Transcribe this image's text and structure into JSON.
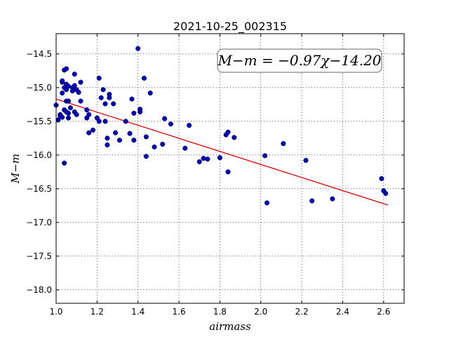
{
  "chart_data": {
    "type": "scatter",
    "title": "2021-10-25_002315",
    "xlabel": "airmass",
    "ylabel": "M−m",
    "xlim": [
      1.0,
      2.7
    ],
    "ylim": [
      -18.2,
      -14.2
    ],
    "y_inverted": false,
    "grid": true,
    "x_ticks": [
      1.0,
      1.2,
      1.4,
      1.6,
      1.8,
      2.0,
      2.2,
      2.4,
      2.6
    ],
    "x_tick_labels": [
      "1.0",
      "1.2",
      "1.4",
      "1.6",
      "1.8",
      "2.0",
      "2.2",
      "2.4",
      "2.6"
    ],
    "y_ticks": [
      -14.5,
      -15.0,
      -15.5,
      -16.0,
      -16.5,
      -17.0,
      -17.5,
      -18.0
    ],
    "y_tick_labels": [
      "−14.5",
      "−15.0",
      "−15.5",
      "−16.0",
      "−16.5",
      "−17.0",
      "−17.5",
      "−18.0"
    ],
    "annotation": "M−m = −0.97χ−14.20",
    "annotation_placement": "top-right",
    "fit": {
      "slope": -0.97,
      "intercept": -14.2,
      "x_range": [
        1.0,
        2.62
      ],
      "color": "#dd0000"
    },
    "point_color": "#0000bb",
    "points": [
      [
        1.0,
        -15.26
      ],
      [
        1.01,
        -15.48
      ],
      [
        1.02,
        -15.4
      ],
      [
        1.02,
        -15.42
      ],
      [
        1.03,
        -15.44
      ],
      [
        1.03,
        -15.08
      ],
      [
        1.03,
        -14.92
      ],
      [
        1.03,
        -14.9
      ],
      [
        1.04,
        -15.0
      ],
      [
        1.04,
        -15.33
      ],
      [
        1.04,
        -16.12
      ],
      [
        1.04,
        -14.74
      ],
      [
        1.05,
        -14.95
      ],
      [
        1.05,
        -15.03
      ],
      [
        1.05,
        -15.2
      ],
      [
        1.05,
        -15.36
      ],
      [
        1.05,
        -14.72
      ],
      [
        1.06,
        -14.98
      ],
      [
        1.06,
        -15.2
      ],
      [
        1.06,
        -15.38
      ],
      [
        1.06,
        -15.45
      ],
      [
        1.07,
        -15.3
      ],
      [
        1.08,
        -15.05
      ],
      [
        1.08,
        -15.0
      ],
      [
        1.09,
        -14.8
      ],
      [
        1.09,
        -14.97
      ],
      [
        1.09,
        -15.36
      ],
      [
        1.1,
        -15.4
      ],
      [
        1.1,
        -15.03
      ],
      [
        1.11,
        -15.07
      ],
      [
        1.12,
        -14.92
      ],
      [
        1.12,
        -15.2
      ],
      [
        1.15,
        -15.45
      ],
      [
        1.15,
        -15.33
      ],
      [
        1.16,
        -15.4
      ],
      [
        1.16,
        -15.67
      ],
      [
        1.18,
        -15.63
      ],
      [
        1.2,
        -15.45
      ],
      [
        1.21,
        -15.5
      ],
      [
        1.21,
        -14.86
      ],
      [
        1.22,
        -15.15
      ],
      [
        1.23,
        -15.03
      ],
      [
        1.24,
        -15.5
      ],
      [
        1.24,
        -15.24
      ],
      [
        1.25,
        -15.75
      ],
      [
        1.25,
        -15.85
      ],
      [
        1.26,
        -15.1
      ],
      [
        1.26,
        -15.15
      ],
      [
        1.28,
        -15.24
      ],
      [
        1.29,
        -15.67
      ],
      [
        1.31,
        -15.78
      ],
      [
        1.34,
        -15.5
      ],
      [
        1.36,
        -15.68
      ],
      [
        1.37,
        -15.17
      ],
      [
        1.38,
        -15.38
      ],
      [
        1.38,
        -15.78
      ],
      [
        1.4,
        -14.42
      ],
      [
        1.41,
        -15.32
      ],
      [
        1.41,
        -15.36
      ],
      [
        1.43,
        -14.86
      ],
      [
        1.44,
        -15.73
      ],
      [
        1.44,
        -16.02
      ],
      [
        1.46,
        -15.08
      ],
      [
        1.48,
        -15.88
      ],
      [
        1.52,
        -15.84
      ],
      [
        1.53,
        -15.46
      ],
      [
        1.56,
        -15.54
      ],
      [
        1.63,
        -15.9
      ],
      [
        1.65,
        -15.56
      ],
      [
        1.7,
        -16.1
      ],
      [
        1.72,
        -16.05
      ],
      [
        1.74,
        -16.06
      ],
      [
        1.8,
        -16.04
      ],
      [
        1.83,
        -15.7
      ],
      [
        1.84,
        -15.66
      ],
      [
        1.84,
        -16.25
      ],
      [
        1.87,
        -15.74
      ],
      [
        2.02,
        -16.01
      ],
      [
        2.03,
        -16.71
      ],
      [
        2.11,
        -15.83
      ],
      [
        2.22,
        -16.08
      ],
      [
        2.25,
        -16.68
      ],
      [
        2.35,
        -16.65
      ],
      [
        2.59,
        -16.35
      ],
      [
        2.6,
        -16.53
      ],
      [
        2.61,
        -16.57
      ]
    ]
  }
}
